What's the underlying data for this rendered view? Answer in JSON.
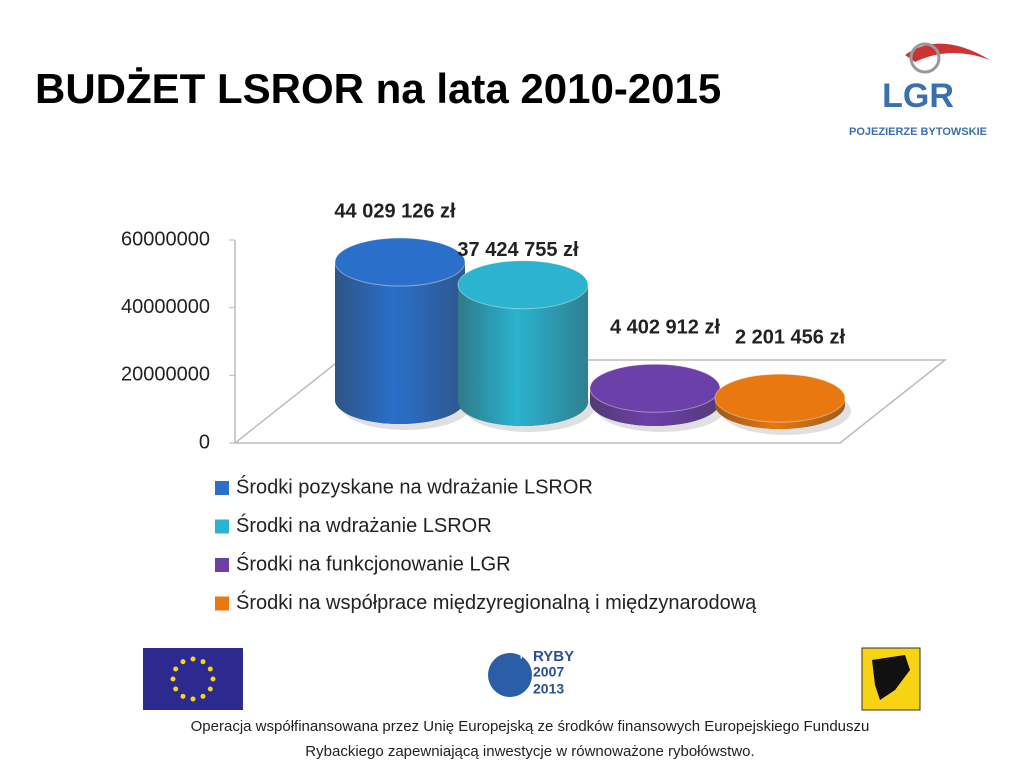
{
  "title": "BUDŻET LSROR na lata 2010-2015",
  "logo": {
    "name": "LGR",
    "subtitle": "POJEZIERZE BYTOWSKIE"
  },
  "chart_data": {
    "type": "bar",
    "ylim": [
      0,
      60000000
    ],
    "yticks": [
      0,
      20000000,
      40000000,
      60000000
    ],
    "series": [
      {
        "name": "Środki pozyskane na wdrażanie LSROR",
        "color": "#2a6fc9",
        "values": [
          44029126
        ],
        "value_labels": [
          "44 029 126 zł"
        ]
      },
      {
        "name": "Środki na wdrażanie LSROR",
        "color": "#2bb3cf",
        "values": [
          37424755
        ],
        "value_labels": [
          "37 424 755 zł"
        ]
      },
      {
        "name": "Środki na funkcjonowanie LGR",
        "color": "#6b40a8",
        "values": [
          4402912
        ],
        "value_labels": [
          "4 402 912 zł"
        ]
      },
      {
        "name": "Środki na współprace międzyregionalną i międzynarodową",
        "color": "#e8780f",
        "values": [
          2201456
        ],
        "value_labels": [
          "2 201 456 zł"
        ]
      }
    ]
  },
  "footer": {
    "programme": [
      "PO",
      "RYBY",
      "2007",
      "2013"
    ],
    "lines": [
      "Operacja współfinansowana przez Unię Europejską ze środków finansowych Europejskiego Funduszu",
      "Rybackiego zapewniającą inwestycje w równoważone rybołówstwo."
    ]
  }
}
